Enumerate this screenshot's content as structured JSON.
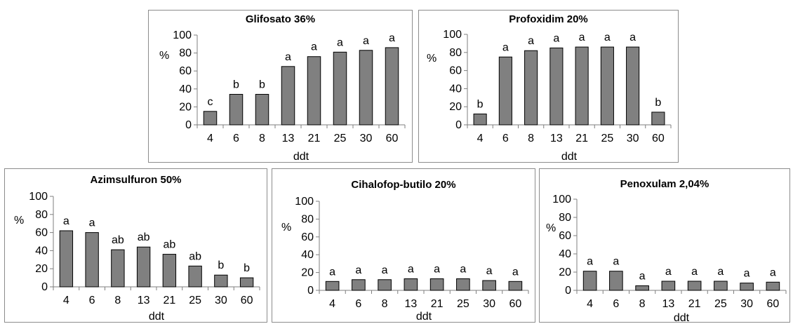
{
  "chart_data": [
    {
      "type": "bar",
      "title": "Glifosato 36%",
      "xlabel": "ddt",
      "ylabel": "%",
      "ylim": [
        0,
        100
      ],
      "yticks": [
        "0",
        "20",
        "40",
        "60",
        "80",
        "100"
      ],
      "categories": [
        "4",
        "6",
        "8",
        "13",
        "21",
        "25",
        "30",
        "60"
      ],
      "values": [
        15,
        34,
        34,
        65,
        76,
        81,
        83,
        86
      ],
      "labels": [
        "c",
        "b",
        "b",
        "a",
        "a",
        "a",
        "a",
        "a"
      ],
      "grid": false,
      "bar_color": "#808080"
    },
    {
      "type": "bar",
      "title": "Profoxidim 20%",
      "xlabel": "ddt",
      "ylabel": "%",
      "ylim": [
        0,
        100
      ],
      "yticks": [
        "0",
        "20",
        "40",
        "60",
        "80",
        "100"
      ],
      "categories": [
        "4",
        "6",
        "8",
        "13",
        "21",
        "25",
        "30",
        "60"
      ],
      "values": [
        12,
        75,
        82,
        85,
        86,
        86,
        86,
        14
      ],
      "labels": [
        "b",
        "a",
        "a",
        "a",
        "a",
        "a",
        "a",
        "b"
      ],
      "grid": false,
      "bar_color": "#808080"
    },
    {
      "type": "bar",
      "title": "Azimsulfuron 50%",
      "xlabel": "ddt",
      "ylabel": "%",
      "ylim": [
        0,
        100
      ],
      "yticks": [
        "0",
        "20",
        "40",
        "60",
        "80",
        "100"
      ],
      "categories": [
        "4",
        "6",
        "8",
        "13",
        "21",
        "25",
        "30",
        "60"
      ],
      "values": [
        62,
        60,
        41,
        44,
        36,
        23,
        13,
        10
      ],
      "labels": [
        "a",
        "a",
        "ab",
        "ab",
        "ab",
        "ab",
        "b",
        "b"
      ],
      "grid": false,
      "bar_color": "#808080"
    },
    {
      "type": "bar",
      "title": "Cihalofop-butilo 20%",
      "xlabel": "ddt",
      "ylabel": "%",
      "ylim": [
        0,
        100
      ],
      "yticks": [
        "0",
        "20",
        "40",
        "60",
        "80",
        "100"
      ],
      "categories": [
        "4",
        "6",
        "8",
        "13",
        "21",
        "25",
        "30",
        "60"
      ],
      "values": [
        10,
        12,
        12,
        13,
        13,
        13,
        11,
        10
      ],
      "labels": [
        "a",
        "a",
        "a",
        "a",
        "a",
        "a",
        "a",
        "a"
      ],
      "grid": false,
      "bar_color": "#808080"
    },
    {
      "type": "bar",
      "title": "Penoxulam 2,04%",
      "xlabel": "ddt",
      "ylabel": "%",
      "ylim": [
        0,
        100
      ],
      "yticks": [
        "0",
        "20",
        "40",
        "60",
        "80",
        "100"
      ],
      "categories": [
        "4",
        "6",
        "8",
        "13",
        "21",
        "25",
        "30",
        "60"
      ],
      "values": [
        21,
        21,
        5,
        10,
        10,
        10,
        8,
        9
      ],
      "labels": [
        "a",
        "a",
        "a",
        "a",
        "a",
        "a",
        "a",
        "a"
      ],
      "grid": false,
      "bar_color": "#808080"
    }
  ]
}
